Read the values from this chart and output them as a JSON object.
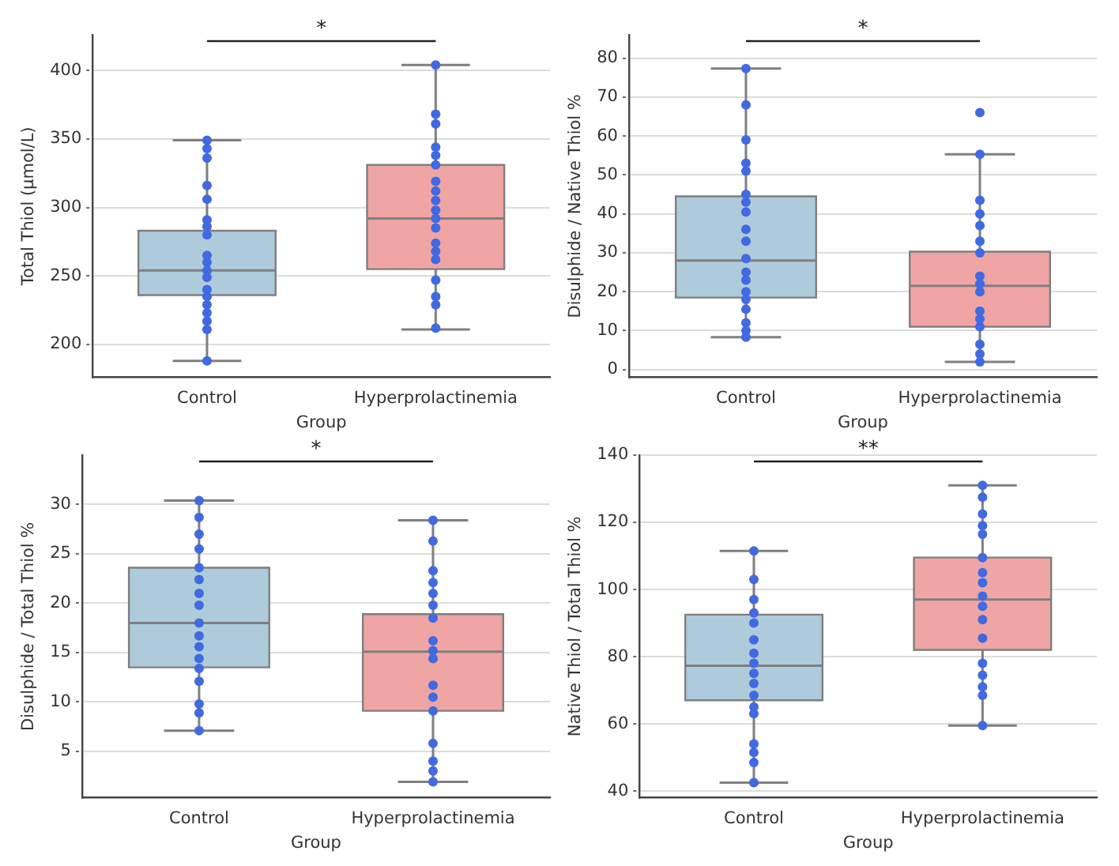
{
  "chart_data": [
    {
      "type": "box",
      "categories": [
        "Control",
        "Hyperprolactinemia"
      ],
      "colors": [
        "#aecbdc",
        "#f0a5a5"
      ],
      "xlabel": "Group",
      "ylabel": "Total Thiol (µmol/L)",
      "ylim": [
        176,
        426
      ],
      "yticks": [
        200,
        250,
        300,
        350,
        400
      ],
      "grid": "y",
      "annotations": [
        "*"
      ],
      "boxes": [
        {
          "low": 188,
          "q1": 236,
          "median": 254,
          "q3": 283,
          "high": 349
        },
        {
          "low": 211,
          "q1": 255,
          "median": 292,
          "q3": 331,
          "high": 404
        }
      ],
      "series": [
        {
          "type": "scatter",
          "color": "#4169e1",
          "x": [
            "Control",
            "Control",
            "Control",
            "Control",
            "Control",
            "Control",
            "Control",
            "Control",
            "Control",
            "Control",
            "Control",
            "Control",
            "Control",
            "Control",
            "Control",
            "Control",
            "Control",
            "Control",
            "Control",
            "Hyperprolactinemia",
            "Hyperprolactinemia",
            "Hyperprolactinemia",
            "Hyperprolactinemia",
            "Hyperprolactinemia",
            "Hyperprolactinemia",
            "Hyperprolactinemia",
            "Hyperprolactinemia",
            "Hyperprolactinemia",
            "Hyperprolactinemia",
            "Hyperprolactinemia",
            "Hyperprolactinemia",
            "Hyperprolactinemia",
            "Hyperprolactinemia",
            "Hyperprolactinemia",
            "Hyperprolactinemia",
            "Hyperprolactinemia",
            "Hyperprolactinemia",
            "Hyperprolactinemia"
          ],
          "values": [
            349,
            343,
            336,
            316,
            306,
            291,
            286,
            280,
            265,
            260,
            254,
            249,
            240,
            235,
            229,
            223,
            217,
            211,
            188,
            404,
            368,
            361,
            344,
            338,
            331,
            319,
            312,
            305,
            298,
            292,
            285,
            274,
            268,
            262,
            247,
            235,
            229,
            212
          ]
        }
      ]
    },
    {
      "type": "box",
      "categories": [
        "Control",
        "Hyperprolactinemia"
      ],
      "colors": [
        "#aecbdc",
        "#f0a5a5"
      ],
      "xlabel": "Group",
      "ylabel": "Disulphide / Native Thiol %",
      "ylim": [
        -2,
        86
      ],
      "yticks": [
        0,
        10,
        20,
        30,
        40,
        50,
        60,
        70,
        80
      ],
      "grid": "y",
      "annotations": [
        "*"
      ],
      "boxes": [
        {
          "low": 8.3,
          "q1": 18.5,
          "median": 28,
          "q3": 44.5,
          "high": 77.3
        },
        {
          "low": 2,
          "q1": 11,
          "median": 21.5,
          "q3": 30.3,
          "high": 55.3
        }
      ],
      "series": [
        {
          "type": "scatter",
          "color": "#4169e1",
          "x": [
            "Control",
            "Control",
            "Control",
            "Control",
            "Control",
            "Control",
            "Control",
            "Control",
            "Control",
            "Control",
            "Control",
            "Control",
            "Control",
            "Control",
            "Control",
            "Control",
            "Control",
            "Control",
            "Control",
            "Hyperprolactinemia",
            "Hyperprolactinemia",
            "Hyperprolactinemia",
            "Hyperprolactinemia",
            "Hyperprolactinemia",
            "Hyperprolactinemia",
            "Hyperprolactinemia",
            "Hyperprolactinemia",
            "Hyperprolactinemia",
            "Hyperprolactinemia",
            "Hyperprolactinemia",
            "Hyperprolactinemia",
            "Hyperprolactinemia",
            "Hyperprolactinemia",
            "Hyperprolactinemia",
            "Hyperprolactinemia"
          ],
          "values": [
            77.3,
            68,
            59,
            53,
            51,
            45,
            43,
            40.5,
            36,
            33,
            28.5,
            25,
            23,
            20,
            18,
            15.5,
            12,
            10,
            8.3,
            66,
            55.3,
            43.5,
            40,
            37,
            33,
            30,
            24,
            22,
            20,
            15,
            13,
            11,
            6.5,
            4,
            2
          ]
        }
      ]
    },
    {
      "type": "box",
      "categories": [
        "Control",
        "Hyperprolactinemia"
      ],
      "colors": [
        "#aecbdc",
        "#f0a5a5"
      ],
      "xlabel": "Group",
      "ylabel": "Disulphide / Total Thiol %",
      "ylim": [
        0.3,
        35
      ],
      "yticks": [
        5,
        10,
        15,
        20,
        25,
        30
      ],
      "grid": "y",
      "annotations": [
        "*"
      ],
      "boxes": [
        {
          "low": 7.1,
          "q1": 13.5,
          "median": 18,
          "q3": 23.6,
          "high": 30.4
        },
        {
          "low": 1.9,
          "q1": 9.1,
          "median": 15.1,
          "q3": 18.9,
          "high": 28.4
        }
      ],
      "series": [
        {
          "type": "scatter",
          "color": "#4169e1",
          "x": [
            "Control",
            "Control",
            "Control",
            "Control",
            "Control",
            "Control",
            "Control",
            "Control",
            "Control",
            "Control",
            "Control",
            "Control",
            "Control",
            "Control",
            "Control",
            "Control",
            "Control",
            "Hyperprolactinemia",
            "Hyperprolactinemia",
            "Hyperprolactinemia",
            "Hyperprolactinemia",
            "Hyperprolactinemia",
            "Hyperprolactinemia",
            "Hyperprolactinemia",
            "Hyperprolactinemia",
            "Hyperprolactinemia",
            "Hyperprolactinemia",
            "Hyperprolactinemia",
            "Hyperprolactinemia",
            "Hyperprolactinemia",
            "Hyperprolactinemia",
            "Hyperprolactinemia",
            "Hyperprolactinemia",
            "Hyperprolactinemia"
          ],
          "values": [
            30.4,
            28.7,
            27,
            25.5,
            23.6,
            22.4,
            21,
            19.8,
            18,
            16.7,
            15.6,
            14.4,
            13.4,
            12.1,
            9.8,
            8.9,
            7.1,
            28.4,
            26.3,
            23.3,
            22.1,
            21,
            19.8,
            18.5,
            16.2,
            15.2,
            14.4,
            11.7,
            10.5,
            9.1,
            5.8,
            4,
            3,
            1.9
          ]
        }
      ]
    },
    {
      "type": "box",
      "categories": [
        "Control",
        "Hyperprolactinemia"
      ],
      "colors": [
        "#aecbdc",
        "#f0a5a5"
      ],
      "xlabel": "Group",
      "ylabel": "Native Thiol / Total Thiol %",
      "ylim": [
        38,
        140
      ],
      "yticks": [
        40,
        60,
        80,
        100,
        120,
        140
      ],
      "grid": "y",
      "annotations": [
        "**"
      ],
      "boxes": [
        {
          "low": 42.5,
          "q1": 67,
          "median": 77.3,
          "q3": 92.5,
          "high": 111.5
        },
        {
          "low": 59.5,
          "q1": 82,
          "median": 97,
          "q3": 109.5,
          "high": 131
        }
      ],
      "series": [
        {
          "type": "scatter",
          "color": "#4169e1",
          "x": [
            "Control",
            "Control",
            "Control",
            "Control",
            "Control",
            "Control",
            "Control",
            "Control",
            "Control",
            "Control",
            "Control",
            "Control",
            "Control",
            "Control",
            "Control",
            "Control",
            "Control",
            "Hyperprolactinemia",
            "Hyperprolactinemia",
            "Hyperprolactinemia",
            "Hyperprolactinemia",
            "Hyperprolactinemia",
            "Hyperprolactinemia",
            "Hyperprolactinemia",
            "Hyperprolactinemia",
            "Hyperprolactinemia",
            "Hyperprolactinemia",
            "Hyperprolactinemia",
            "Hyperprolactinemia",
            "Hyperprolactinemia",
            "Hyperprolactinemia",
            "Hyperprolactinemia",
            "Hyperprolactinemia",
            "Hyperprolactinemia"
          ],
          "values": [
            111.5,
            103,
            97,
            93,
            90,
            85,
            81,
            78,
            75,
            72,
            68.5,
            65,
            63,
            54,
            51.5,
            48.5,
            42.5,
            131,
            127.5,
            122.5,
            119,
            116.5,
            109.5,
            105,
            102,
            98,
            95,
            91,
            85.5,
            78,
            74.5,
            71,
            68.5,
            59.5
          ]
        }
      ]
    }
  ]
}
